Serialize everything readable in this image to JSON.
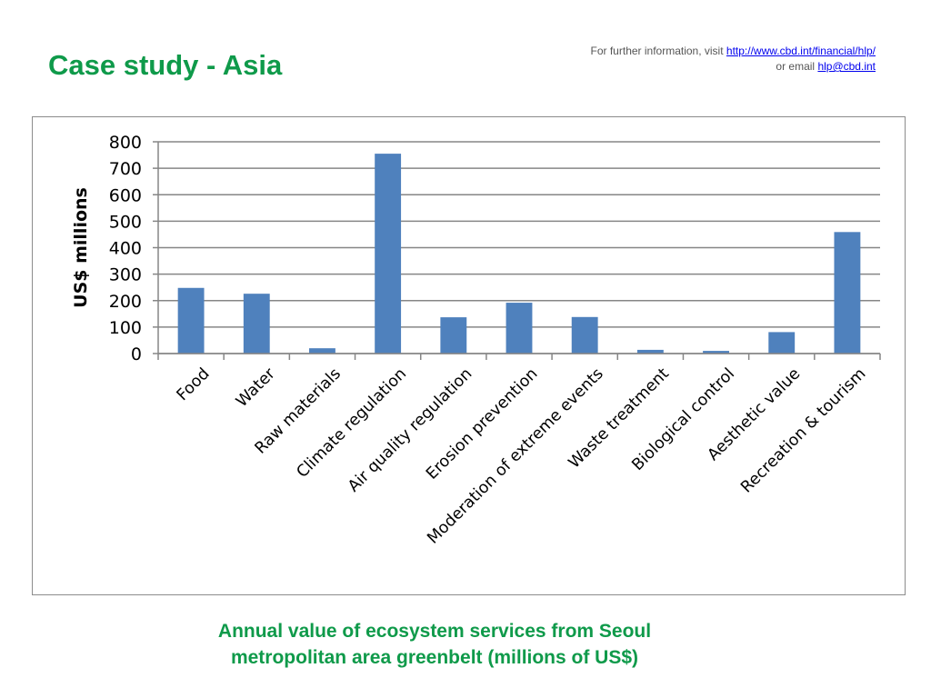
{
  "slide": {
    "title": "Case study - Asia",
    "info_prefix": "For further information, visit ",
    "info_link": "http://www.cbd.int/financial/hlp/",
    "email_prefix": "or email ",
    "email_link": "hlp@cbd.int"
  },
  "caption": {
    "line1": "Annual value of ecosystem services from Seoul",
    "line2": "metropolitan area greenbelt (millions of US$)"
  },
  "colors": {
    "title": "#0f9a4a",
    "bar": "#4f81bd",
    "grid": "#868686"
  },
  "chart_data": {
    "type": "bar",
    "title": "",
    "xlabel": "",
    "ylabel": "US$ millions",
    "ylim": [
      0,
      800
    ],
    "yticks": [
      0,
      100,
      200,
      300,
      400,
      500,
      600,
      700,
      800
    ],
    "grid": true,
    "legend": "none",
    "categories": [
      "Food",
      "Water",
      "Raw materials",
      "Climate regulation",
      "Air quality regulation",
      "Erosion prevention",
      "Moderation of extreme events",
      "Waste treatment",
      "Biological control",
      "Aesthetic value",
      "Recreation & tourism"
    ],
    "values": [
      248,
      226,
      20,
      755,
      137,
      192,
      138,
      14,
      10,
      81,
      459
    ]
  }
}
